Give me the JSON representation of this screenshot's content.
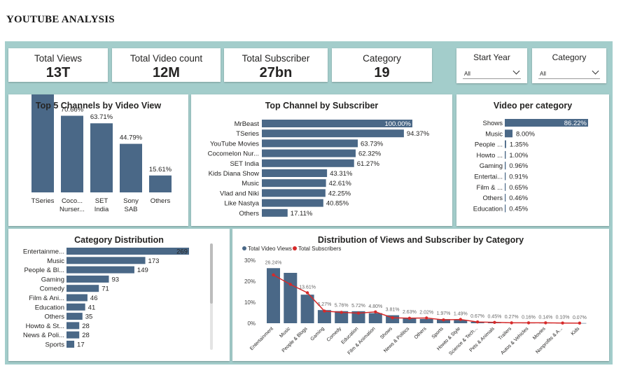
{
  "title": "YOUTUBE ANALYSIS",
  "colors": {
    "bar": "#4a6887",
    "line": "#d62a2a",
    "canvas": "#a3cdcb"
  },
  "kpis": [
    {
      "label": "Total Views",
      "value": "13T"
    },
    {
      "label": "Total Video count",
      "value": "12M"
    },
    {
      "label": "Total Subscriber",
      "value": "27bn"
    },
    {
      "label": "Category",
      "value": "19"
    }
  ],
  "slicers": [
    {
      "label": "Start Year",
      "value": "All",
      "icon": "chevron-down-icon"
    },
    {
      "label": "Category",
      "value": "All",
      "icon": "chevron-down-icon"
    }
  ],
  "chart_data": [
    {
      "type": "bar",
      "title": "Top 5 Channels by Video View",
      "categories": [
        "TSeries",
        "Coco... Nurser...",
        "SET India",
        "Sony SAB",
        "Others"
      ],
      "label_lines": [
        [
          "TSeries"
        ],
        [
          "Coco...",
          "Nurser..."
        ],
        [
          "SET",
          "India"
        ],
        [
          "Sony",
          "SAB"
        ],
        [
          "Others"
        ]
      ],
      "values": [
        100.0,
        70.66,
        63.71,
        44.79,
        15.61
      ],
      "data_labels": [
        "100.00%",
        "70.66%",
        "63.71%",
        "44.79%",
        "15.61%"
      ]
    },
    {
      "type": "bar",
      "orientation": "horizontal",
      "title": "Top Channel by Subscriber",
      "categories": [
        "MrBeast",
        "TSeries",
        "YouTube Movies",
        "Cocomelon Nur...",
        "SET India",
        "Kids Diana Show",
        "Music",
        "Vlad and Niki",
        "Like Nastya",
        "Others"
      ],
      "values": [
        100.0,
        94.37,
        63.73,
        62.32,
        61.27,
        43.31,
        42.61,
        42.25,
        40.85,
        17.11
      ],
      "data_labels": [
        "100.00%",
        "94.37%",
        "63.73%",
        "62.32%",
        "61.27%",
        "43.31%",
        "42.61%",
        "42.25%",
        "40.85%",
        "17.11%"
      ]
    },
    {
      "type": "bar",
      "orientation": "horizontal",
      "title": "Video per category",
      "categories": [
        "Shows",
        "Music",
        "People ...",
        "Howto ...",
        "Gaming",
        "Entertai...",
        "Film & ...",
        "Others",
        "Education"
      ],
      "values": [
        86.22,
        8.0,
        1.35,
        1.0,
        0.96,
        0.91,
        0.65,
        0.46,
        0.45
      ],
      "data_labels": [
        "86.22%",
        "8.00%",
        "1.35%",
        "1.00%",
        "0.96%",
        "0.91%",
        "0.65%",
        "0.46%",
        "0.45%"
      ]
    },
    {
      "type": "bar",
      "orientation": "horizontal",
      "title": "Category Distribution",
      "categories": [
        "Entertainme...",
        "Music",
        "People & Bl...",
        "Gaming",
        "Comedy",
        "Film & Ani...",
        "Education",
        "Others",
        "Howto & St...",
        "News & Poli...",
        "Sports"
      ],
      "values": [
        269,
        173,
        149,
        93,
        71,
        46,
        41,
        35,
        28,
        28,
        17
      ]
    },
    {
      "type": "bar",
      "title": "Distribution of Views and Subscriber by Category",
      "legend": [
        "Total Video Views",
        "Total Subscribers"
      ],
      "legend_position": "top-left",
      "categories": [
        "Entertainment",
        "Music",
        "People & Blogs",
        "Gaming",
        "Comedy",
        "Education",
        "Film & Animation",
        "Shows",
        "News & Politics",
        "Others",
        "Sports",
        "Howto & Style",
        "Science & Tech...",
        "Pets & Animals",
        "Trailers",
        "Autos & Vehicles",
        "Movies",
        "Nonprofits & A...",
        "Kids"
      ],
      "series": [
        {
          "name": "Total Video Views",
          "type": "bar",
          "values": [
            26.24,
            24.0,
            13.61,
            6.27,
            5.76,
            5.72,
            4.8,
            3.81,
            2.63,
            2.02,
            1.97,
            1.49,
            0.67,
            0.45,
            0.27,
            0.16,
            0.14,
            0.1,
            0.07
          ]
        },
        {
          "name": "Total Subscribers",
          "type": "line",
          "values": [
            23.0,
            18.5,
            14.5,
            5.8,
            5.2,
            4.8,
            5.4,
            2.6,
            2.4,
            2.5,
            1.6,
            1.8,
            0.6,
            0.4,
            0.2,
            0.2,
            0.2,
            0.1,
            0.05
          ]
        }
      ],
      "data_labels": [
        "26.24%",
        "",
        "13.61%",
        "6.27%",
        "5.76%",
        "5.72%",
        "4.80%",
        "3.81%",
        "2.63%",
        "2.02%",
        "1.97%",
        "1.49%",
        "0.67%",
        "0.45%",
        "0.27%",
        "0.16%",
        "0.14%",
        "0.10%",
        "0.07%"
      ],
      "yticks": [
        "0%",
        "10%",
        "20%",
        "30%"
      ],
      "ylim": [
        0,
        30
      ]
    }
  ]
}
